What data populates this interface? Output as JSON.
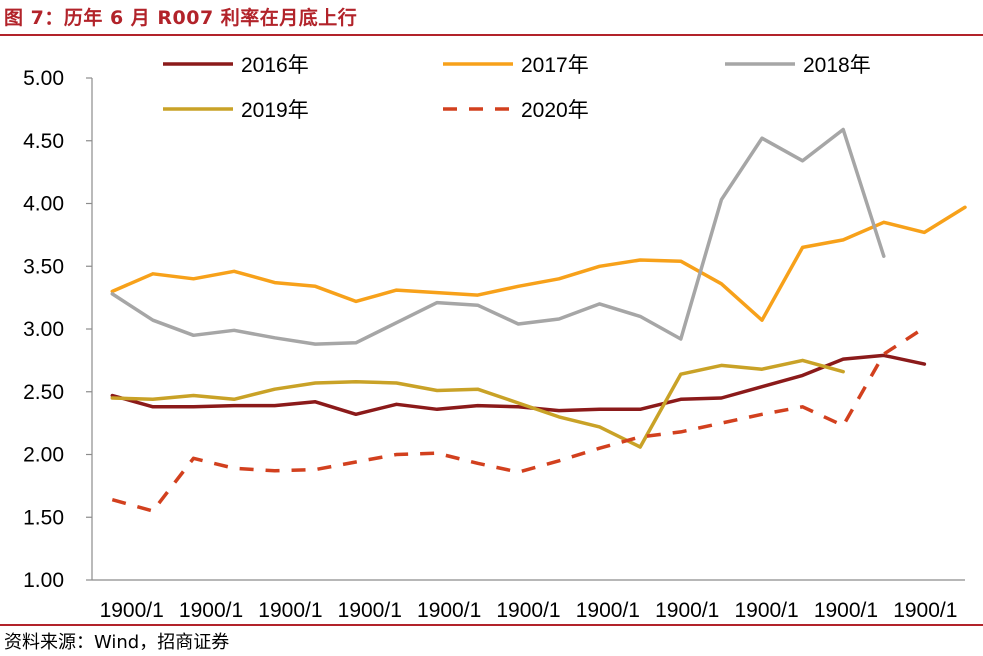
{
  "title": "图 7：历年 6 月 R007 利率在月底上行",
  "source": "资料来源：Wind，招商证券",
  "chart_data": {
    "type": "line",
    "title": "",
    "xlabel": "",
    "ylabel": "",
    "ylim": [
      1.0,
      5.0
    ],
    "yticks": [
      "1.00",
      "1.50",
      "2.00",
      "2.50",
      "3.00",
      "3.50",
      "4.00",
      "4.50",
      "5.00"
    ],
    "xtick_labels": [
      "1900/1",
      "1900/1",
      "1900/1",
      "1900/1",
      "1900/1",
      "1900/1",
      "1900/1",
      "1900/1",
      "1900/1",
      "1900/1",
      "1900/1"
    ],
    "grid": false,
    "legend_position": "top",
    "series": [
      {
        "name": "2016年",
        "color": "#8b1a1a",
        "dash": false,
        "values": [
          2.47,
          2.38,
          2.38,
          2.39,
          2.39,
          2.42,
          2.32,
          2.4,
          2.36,
          2.39,
          2.38,
          2.35,
          2.36,
          2.36,
          2.44,
          2.45,
          2.54,
          2.63,
          2.76,
          2.79,
          2.72
        ]
      },
      {
        "name": "2017年",
        "color": "#f7a11a",
        "dash": false,
        "values": [
          3.3,
          3.44,
          3.4,
          3.46,
          3.37,
          3.34,
          3.22,
          3.31,
          3.29,
          3.27,
          3.34,
          3.4,
          3.5,
          3.55,
          3.54,
          3.36,
          3.07,
          3.65,
          3.71,
          3.85,
          3.77,
          3.97
        ]
      },
      {
        "name": "2018年",
        "color": "#a6a6a6",
        "dash": false,
        "values": [
          3.28,
          3.07,
          2.95,
          2.99,
          2.93,
          2.88,
          2.89,
          3.05,
          3.21,
          3.19,
          3.04,
          3.08,
          3.2,
          3.1,
          2.92,
          4.03,
          4.52,
          4.34,
          4.59,
          3.58
        ]
      },
      {
        "name": "2019年",
        "color": "#c9a227",
        "dash": false,
        "values": [
          2.45,
          2.44,
          2.47,
          2.44,
          2.52,
          2.57,
          2.58,
          2.57,
          2.51,
          2.52,
          2.41,
          2.3,
          2.22,
          2.06,
          2.64,
          2.71,
          2.68,
          2.75,
          2.66
        ]
      },
      {
        "name": "2020年",
        "color": "#d2401e",
        "dash": true,
        "values": [
          1.64,
          1.55,
          1.97,
          1.89,
          1.87,
          1.88,
          1.94,
          2.0,
          2.01,
          1.93,
          1.86,
          1.95,
          2.05,
          2.14,
          2.18,
          2.25,
          2.32,
          2.38,
          2.23,
          2.8,
          3.01
        ]
      }
    ]
  }
}
